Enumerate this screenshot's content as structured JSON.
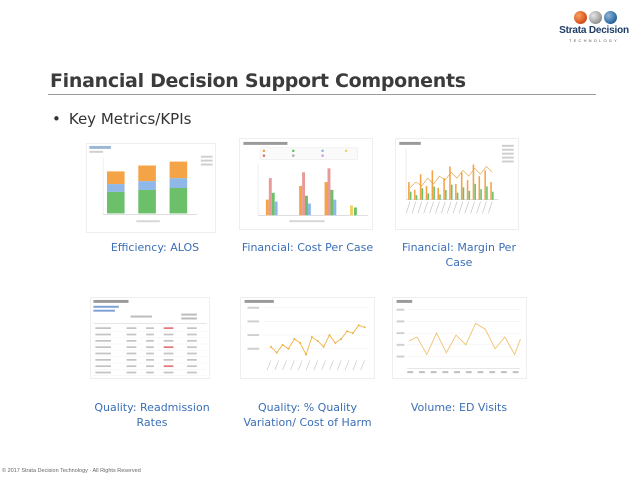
{
  "brand": {
    "name": "Strata Decision",
    "tagline": "TECHNOLOGY"
  },
  "slide": {
    "title": "Financial Decision Support Components",
    "bullet": "Key Metrics/KPIs",
    "footer": "© 2017 Strata Decision Technology · All Rights Reserved"
  },
  "tiles": [
    {
      "caption": "Efficiency: ALOS"
    },
    {
      "caption": "Financial: Cost Per Case"
    },
    {
      "caption": "Financial: Margin Per Case"
    },
    {
      "caption": "Quality: Readmission Rates"
    },
    {
      "caption": "Quality: % Quality Variation/ Cost of Harm"
    },
    {
      "caption": "Volume: ED Visits"
    }
  ],
  "colors": {
    "accent_blue": "#3b6fb6",
    "bar_orange": "#f5a347",
    "bar_blue": "#8fb8e8",
    "bar_green": "#6cc06a",
    "bar_pink": "#e89a9a",
    "line_orange": "#f0b040"
  }
}
